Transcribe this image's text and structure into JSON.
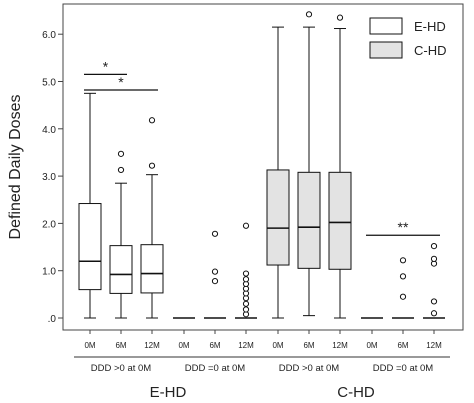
{
  "chart_data": {
    "type": "boxplot",
    "ylabel": "Defined Daily Doses",
    "ylim": [
      0,
      6.6
    ],
    "yticks": [
      {
        "v": 0,
        "label": ".0"
      },
      {
        "v": 1,
        "label": "1.0"
      },
      {
        "v": 2,
        "label": "2.0"
      },
      {
        "v": 3,
        "label": "3.0"
      },
      {
        "v": 4,
        "label": "4.0"
      },
      {
        "v": 5,
        "label": "5.0"
      },
      {
        "v": 6,
        "label": "6.0"
      }
    ],
    "legend": {
      "placement": "top-right",
      "entries": [
        {
          "name": "E-HD",
          "color": "#ffffff"
        },
        {
          "name": "C-HD",
          "color": "#e3e3e3"
        }
      ]
    },
    "groups": [
      {
        "label": "DDD >0 at 0M",
        "series": "E-HD",
        "box_color": "#ffffff",
        "boxes": [
          {
            "x": "0M",
            "min": 0.0,
            "q1": 0.6,
            "median": 1.2,
            "q3": 2.42,
            "max": 4.75,
            "outliers": []
          },
          {
            "x": "6M",
            "min": 0.0,
            "q1": 0.52,
            "median": 0.92,
            "q3": 1.53,
            "max": 2.85,
            "outliers": [
              3.13,
              3.47
            ]
          },
          {
            "x": "12M",
            "min": 0.0,
            "q1": 0.53,
            "median": 0.94,
            "q3": 1.55,
            "max": 3.03,
            "outliers": [
              3.22,
              4.18
            ]
          }
        ]
      },
      {
        "label": "DDD =0 at 0M",
        "series": "E-HD",
        "box_color": "#ffffff",
        "boxes": [
          {
            "x": "0M",
            "min": 0.0,
            "q1": 0.0,
            "median": 0.0,
            "q3": 0.0,
            "max": 0.0,
            "outliers": []
          },
          {
            "x": "6M",
            "min": 0.0,
            "q1": 0.0,
            "median": 0.0,
            "q3": 0.0,
            "max": 0.0,
            "outliers": [
              0.78,
              0.98,
              1.78
            ]
          },
          {
            "x": "12M",
            "min": 0.0,
            "q1": 0.0,
            "median": 0.0,
            "q3": 0.0,
            "max": 0.0,
            "outliers": [
              0.08,
              0.18,
              0.3,
              0.42,
              0.52,
              0.62,
              0.72,
              0.82,
              0.94,
              1.95
            ]
          }
        ]
      },
      {
        "label": "DDD >0 at 0M",
        "series": "C-HD",
        "box_color": "#e3e3e3",
        "boxes": [
          {
            "x": "0M",
            "min": 0.0,
            "q1": 1.12,
            "median": 1.9,
            "q3": 3.13,
            "max": 6.15,
            "outliers": []
          },
          {
            "x": "6M",
            "min": 0.05,
            "q1": 1.05,
            "median": 1.92,
            "q3": 3.08,
            "max": 6.15,
            "outliers": [
              6.42
            ]
          },
          {
            "x": "12M",
            "min": 0.0,
            "q1": 1.03,
            "median": 2.02,
            "q3": 3.08,
            "max": 6.12,
            "outliers": [
              6.35
            ]
          }
        ]
      },
      {
        "label": "DDD =0 at 0M",
        "series": "C-HD",
        "box_color": "#e3e3e3",
        "boxes": [
          {
            "x": "0M",
            "min": 0.0,
            "q1": 0.0,
            "median": 0.0,
            "q3": 0.0,
            "max": 0.0,
            "outliers": []
          },
          {
            "x": "6M",
            "min": 0.0,
            "q1": 0.0,
            "median": 0.0,
            "q3": 0.0,
            "max": 0.0,
            "outliers": [
              0.45,
              0.88,
              1.22
            ]
          },
          {
            "x": "12M",
            "min": 0.0,
            "q1": 0.0,
            "median": 0.0,
            "q3": 0.0,
            "max": 0.0,
            "outliers": [
              0.1,
              0.35,
              1.15,
              1.25,
              1.52
            ]
          }
        ]
      }
    ],
    "series_labels": [
      "E-HD",
      "C-HD"
    ],
    "annotations": [
      {
        "text": "*",
        "group": 0,
        "from": 0,
        "to": 1,
        "y": 5.15
      },
      {
        "text": "*",
        "group": 0,
        "from": 0,
        "to": 2,
        "y": 4.82
      },
      {
        "text": "**",
        "group": 3,
        "from": 0,
        "to": 2,
        "y": 1.75
      }
    ]
  }
}
